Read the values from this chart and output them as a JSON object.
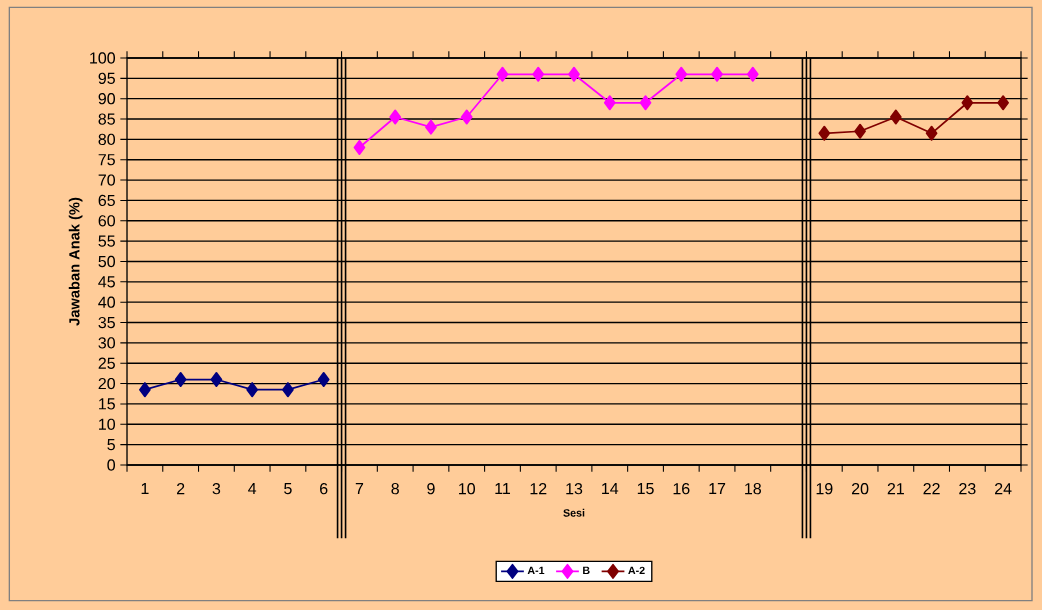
{
  "chart_data": {
    "type": "line",
    "xlabel": "Sesi",
    "ylabel": "Jawaban Anak (%)",
    "categories": [
      "1",
      "2",
      "3",
      "4",
      "5",
      "6",
      "7",
      "8",
      "9",
      "10",
      "11",
      "12",
      "13",
      "14",
      "15",
      "16",
      "17",
      "18",
      null,
      "19",
      "20",
      "21",
      "22",
      "23",
      "24"
    ],
    "series": [
      {
        "name": "A-1",
        "color": "#000080",
        "values": [
          18.5,
          21,
          21,
          18.5,
          18.5,
          21,
          null,
          null,
          null,
          null,
          null,
          null,
          null,
          null,
          null,
          null,
          null,
          null,
          null,
          null,
          null,
          null,
          null,
          null,
          null
        ]
      },
      {
        "name": "B",
        "color": "#ff00ff",
        "values": [
          null,
          null,
          null,
          null,
          null,
          null,
          78,
          85.5,
          83,
          85.5,
          96,
          96,
          96,
          89,
          89,
          96,
          96,
          96,
          null,
          null,
          null,
          null,
          null,
          null,
          null
        ]
      },
      {
        "name": "A-2",
        "color": "#800000",
        "values": [
          null,
          null,
          null,
          null,
          null,
          null,
          null,
          null,
          null,
          null,
          null,
          null,
          null,
          null,
          null,
          null,
          null,
          null,
          null,
          81.5,
          82,
          85.5,
          81.5,
          89,
          89
        ]
      }
    ],
    "ylim": [
      0,
      100
    ],
    "yticks": [
      0,
      5,
      10,
      15,
      20,
      25,
      30,
      35,
      40,
      45,
      50,
      55,
      60,
      65,
      70,
      75,
      80,
      85,
      90,
      95,
      100
    ],
    "grid": "y",
    "legend": "bottom",
    "marker": "diamond",
    "line_style": "solid"
  }
}
